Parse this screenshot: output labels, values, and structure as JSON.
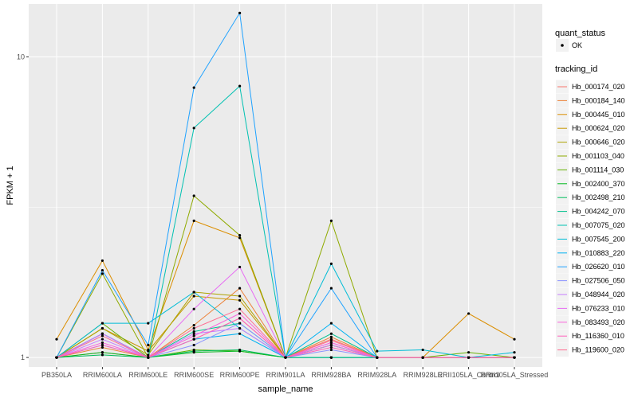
{
  "chart_data": {
    "type": "line",
    "xlabel": "sample_name",
    "ylabel": "FPKM + 1",
    "y_scale": "log10",
    "ylim": [
      0.93,
      15.0
    ],
    "y_ticks": [
      1,
      10
    ],
    "y_tick_labels": [
      "1",
      "10"
    ],
    "grid": true,
    "legend_position": "right",
    "categories": [
      "PB350LA",
      "RRIM600LA",
      "RRIM600LE",
      "RRIM600SE",
      "RRIM600PE",
      "RRIM901LA",
      "RRIM928BA",
      "RRIM928LA",
      "RRIM928LE",
      "RRII105LA_Control",
      "RRII105LA_Stressed"
    ],
    "point_legend": {
      "title": "quant_status",
      "entries": [
        "OK"
      ]
    },
    "color_legend_title": "tracking_id",
    "series": [
      {
        "name": "Hb_000174_020",
        "color": "#F8766D",
        "values": [
          1.0,
          1.04,
          1.0,
          1.15,
          1.35,
          1.0,
          1.15,
          1.0,
          1.0,
          1.0,
          1.0
        ]
      },
      {
        "name": "Hb_000184_140",
        "color": "#EC8239",
        "values": [
          1.0,
          1.08,
          1.0,
          1.28,
          1.7,
          1.0,
          1.17,
          1.0,
          1.0,
          1.0,
          1.0
        ]
      },
      {
        "name": "Hb_000445_010",
        "color": "#DB8E00",
        "values": [
          1.15,
          2.1,
          1.06,
          2.85,
          2.5,
          1.0,
          1.0,
          1.0,
          1.0,
          1.4,
          1.15
        ]
      },
      {
        "name": "Hb_000624_020",
        "color": "#C79800",
        "values": [
          1.0,
          1.25,
          1.05,
          1.6,
          1.55,
          1.0,
          1.1,
          1.0,
          1.0,
          1.0,
          1.0
        ]
      },
      {
        "name": "Hb_000646_020",
        "color": "#AEA200",
        "values": [
          1.0,
          1.25,
          1.02,
          1.65,
          1.6,
          1.0,
          1.1,
          1.0,
          1.0,
          1.0,
          1.0
        ]
      },
      {
        "name": "Hb_001103_040",
        "color": "#8FAA00",
        "values": [
          1.0,
          1.9,
          1.0,
          3.45,
          2.55,
          1.0,
          2.85,
          1.0,
          1.0,
          1.0,
          1.0
        ]
      },
      {
        "name": "Hb_001114_030",
        "color": "#64B200",
        "values": [
          1.0,
          1.3,
          1.0,
          1.06,
          1.05,
          1.0,
          1.0,
          1.0,
          1.0,
          1.04,
          1.0
        ]
      },
      {
        "name": "Hb_002400_370",
        "color": "#00B81B",
        "values": [
          1.0,
          1.04,
          1.0,
          1.04,
          1.05,
          1.0,
          1.0,
          1.0,
          1.0,
          1.0,
          1.0
        ]
      },
      {
        "name": "Hb_002498_210",
        "color": "#00BD5C",
        "values": [
          1.0,
          1.02,
          1.0,
          1.05,
          1.06,
          1.0,
          1.0,
          1.0,
          1.0,
          1.0,
          1.0
        ]
      },
      {
        "name": "Hb_004242_070",
        "color": "#00C08E",
        "values": [
          1.0,
          1.2,
          1.0,
          1.22,
          1.3,
          1.0,
          1.2,
          1.0,
          1.0,
          1.0,
          1.0
        ]
      },
      {
        "name": "Hb_007075_020",
        "color": "#00C1B2",
        "values": [
          1.0,
          1.2,
          1.0,
          5.8,
          8.0,
          1.0,
          1.0,
          1.0,
          1.0,
          1.0,
          1.0
        ]
      },
      {
        "name": "Hb_007545_200",
        "color": "#00BCD6",
        "values": [
          1.0,
          1.3,
          1.3,
          1.65,
          1.25,
          1.0,
          2.05,
          1.05,
          1.06,
          1.0,
          1.04
        ]
      },
      {
        "name": "Hb_010883_220",
        "color": "#00B2F3",
        "values": [
          1.0,
          1.2,
          1.0,
          1.15,
          1.2,
          1.0,
          1.3,
          1.0,
          1.0,
          1.0,
          1.0
        ]
      },
      {
        "name": "Hb_026620_010",
        "color": "#1FA2FF",
        "values": [
          1.0,
          1.95,
          1.1,
          7.9,
          14.0,
          1.0,
          1.7,
          1.0,
          1.0,
          1.0,
          1.0
        ]
      },
      {
        "name": "Hb_027506_050",
        "color": "#8B93FF",
        "values": [
          1.0,
          1.1,
          1.0,
          1.1,
          1.3,
          1.0,
          1.06,
          1.0,
          1.0,
          1.0,
          1.0
        ]
      },
      {
        "name": "Hb_048944_020",
        "color": "#C77CFF",
        "values": [
          1.0,
          1.15,
          1.0,
          1.2,
          1.25,
          1.0,
          1.1,
          1.0,
          1.0,
          1.0,
          1.0
        ]
      },
      {
        "name": "Hb_076233_010",
        "color": "#E76BF3",
        "values": [
          1.0,
          1.2,
          1.0,
          1.45,
          2.0,
          1.0,
          1.12,
          1.0,
          1.0,
          1.0,
          1.0
        ]
      },
      {
        "name": "Hb_083493_020",
        "color": "#FA62DB",
        "values": [
          1.0,
          1.12,
          1.0,
          1.18,
          1.4,
          1.0,
          1.12,
          1.0,
          1.0,
          1.0,
          1.0
        ]
      },
      {
        "name": "Hb_116360_010",
        "color": "#FF62BC",
        "values": [
          1.0,
          1.1,
          1.0,
          1.15,
          1.35,
          1.0,
          1.08,
          1.0,
          1.0,
          1.0,
          1.0
        ]
      },
      {
        "name": "Hb_119600_020",
        "color": "#FF6C91",
        "values": [
          1.0,
          1.18,
          1.0,
          1.25,
          1.45,
          1.0,
          1.14,
          1.0,
          1.0,
          1.0,
          1.0
        ]
      }
    ]
  },
  "colors": {
    "panel_background": "#EBEBEB",
    "grid_major": "#FFFFFF",
    "point": "#000000"
  }
}
